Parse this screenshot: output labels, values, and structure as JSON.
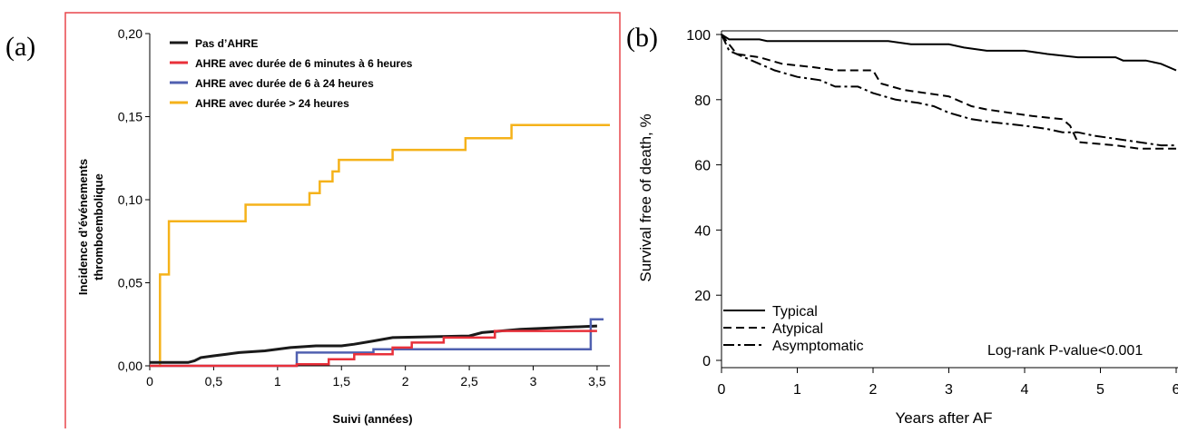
{
  "panel_a": {
    "letter": "(a)",
    "border_color": "#e8474c"
  },
  "panel_b": {
    "letter": "(b)"
  },
  "chart_data": [
    {
      "type": "line",
      "step": true,
      "xlabel": "Suivi (années)",
      "ylabel": [
        "Incidence d’événements",
        "thromboembolique"
      ],
      "xlim": [
        0,
        3.6
      ],
      "ylim": [
        0,
        0.2
      ],
      "xticks": [
        0,
        0.5,
        1,
        1.5,
        2,
        2.5,
        3,
        3.5
      ],
      "xtick_labels": [
        "0",
        "0,5",
        "1",
        "1,5",
        "2",
        "2,5",
        "3",
        "3,5"
      ],
      "yticks": [
        0,
        0.05,
        0.1,
        0.15,
        0.2
      ],
      "ytick_labels": [
        "0,00",
        "0,05",
        "0,10",
        "0,15",
        "0,20"
      ],
      "legend_position": "top-left",
      "series": [
        {
          "name": "Pas d’AHRE",
          "color": "#1a1a1a",
          "points": [
            [
              0,
              0.002
            ],
            [
              0.3,
              0.002
            ],
            [
              0.35,
              0.003
            ],
            [
              0.4,
              0.005
            ],
            [
              0.5,
              0.006
            ],
            [
              0.6,
              0.007
            ],
            [
              0.7,
              0.008
            ],
            [
              0.9,
              0.009
            ],
            [
              1.1,
              0.011
            ],
            [
              1.3,
              0.012
            ],
            [
              1.5,
              0.012
            ],
            [
              1.6,
              0.013
            ],
            [
              1.75,
              0.015
            ],
            [
              1.9,
              0.017
            ],
            [
              2.5,
              0.018
            ],
            [
              2.6,
              0.02
            ],
            [
              2.9,
              0.022
            ],
            [
              3.2,
              0.023
            ],
            [
              3.5,
              0.024
            ]
          ]
        },
        {
          "name": "AHRE avec durée de 6 minutes à 6 heures",
          "color": "#e8303a",
          "points": [
            [
              0,
              0
            ],
            [
              1.15,
              0
            ],
            [
              1.15,
              0.001
            ],
            [
              1.4,
              0.001
            ],
            [
              1.4,
              0.004
            ],
            [
              1.6,
              0.004
            ],
            [
              1.6,
              0.007
            ],
            [
              1.9,
              0.007
            ],
            [
              1.9,
              0.011
            ],
            [
              2.05,
              0.011
            ],
            [
              2.05,
              0.014
            ],
            [
              2.3,
              0.014
            ],
            [
              2.3,
              0.017
            ],
            [
              2.7,
              0.017
            ],
            [
              2.7,
              0.021
            ],
            [
              3.5,
              0.021
            ]
          ]
        },
        {
          "name": "AHRE avec durée de 6 à 24 heures",
          "color": "#5060b0",
          "points": [
            [
              0,
              0
            ],
            [
              1.15,
              0
            ],
            [
              1.15,
              0.008
            ],
            [
              1.75,
              0.008
            ],
            [
              1.75,
              0.01
            ],
            [
              3.45,
              0.01
            ],
            [
              3.45,
              0.028
            ],
            [
              3.55,
              0.028
            ]
          ]
        },
        {
          "name": "AHRE avec durée > 24 heures",
          "color": "#f5b21a",
          "points": [
            [
              0,
              0
            ],
            [
              0.08,
              0
            ],
            [
              0.08,
              0.055
            ],
            [
              0.15,
              0.055
            ],
            [
              0.15,
              0.087
            ],
            [
              0.75,
              0.087
            ],
            [
              0.75,
              0.097
            ],
            [
              1.25,
              0.097
            ],
            [
              1.25,
              0.104
            ],
            [
              1.33,
              0.104
            ],
            [
              1.33,
              0.111
            ],
            [
              1.43,
              0.111
            ],
            [
              1.43,
              0.117
            ],
            [
              1.48,
              0.117
            ],
            [
              1.48,
              0.124
            ],
            [
              1.9,
              0.124
            ],
            [
              1.9,
              0.13
            ],
            [
              2.47,
              0.13
            ],
            [
              2.47,
              0.137
            ],
            [
              2.83,
              0.137
            ],
            [
              2.83,
              0.145
            ],
            [
              3.6,
              0.145
            ]
          ]
        }
      ]
    },
    {
      "type": "line",
      "step": true,
      "xlabel": "Years after AF",
      "ylabel": "Survival free of death, %",
      "xlim": [
        0,
        6
      ],
      "ylim": [
        0,
        100
      ],
      "xticks": [
        0,
        1,
        2,
        3,
        4,
        5,
        6
      ],
      "xtick_labels": [
        "0",
        "1",
        "2",
        "3",
        "4",
        "5",
        "6"
      ],
      "yticks": [
        0,
        20,
        40,
        60,
        80,
        100
      ],
      "ytick_labels": [
        "0",
        "20",
        "40",
        "60",
        "80",
        "100"
      ],
      "legend_position": "bottom-left",
      "annotation": "Log-rank P-value<0.001",
      "series": [
        {
          "name": "Typical",
          "dash": "solid",
          "points": [
            [
              0,
              100
            ],
            [
              0.1,
              98.5
            ],
            [
              0.5,
              98.5
            ],
            [
              0.6,
              98
            ],
            [
              2.2,
              98
            ],
            [
              2.5,
              97
            ],
            [
              3.0,
              97
            ],
            [
              3.2,
              96
            ],
            [
              3.5,
              95
            ],
            [
              4.0,
              95
            ],
            [
              4.3,
              94
            ],
            [
              4.7,
              93
            ],
            [
              5.2,
              93
            ],
            [
              5.3,
              92
            ],
            [
              5.6,
              92
            ],
            [
              5.8,
              91
            ],
            [
              6.0,
              89
            ]
          ]
        },
        {
          "name": "Atypical",
          "dash": "dashed",
          "points": [
            [
              0,
              100
            ],
            [
              0.2,
              94
            ],
            [
              0.5,
              93
            ],
            [
              0.8,
              91
            ],
            [
              1.2,
              90
            ],
            [
              1.5,
              89
            ],
            [
              2.0,
              89
            ],
            [
              2.1,
              85
            ],
            [
              2.4,
              83
            ],
            [
              2.7,
              82
            ],
            [
              3.0,
              81
            ],
            [
              3.3,
              78
            ],
            [
              3.5,
              77
            ],
            [
              3.8,
              76
            ],
            [
              4.1,
              75
            ],
            [
              4.5,
              74
            ],
            [
              4.6,
              72
            ],
            [
              4.7,
              67
            ],
            [
              5.2,
              66
            ],
            [
              5.5,
              65
            ],
            [
              6.0,
              65
            ]
          ]
        },
        {
          "name": "Asymptomatic",
          "dash": "dashdot",
          "points": [
            [
              0,
              100
            ],
            [
              0.1,
              95
            ],
            [
              0.3,
              93
            ],
            [
              0.5,
              91
            ],
            [
              0.7,
              89
            ],
            [
              1.0,
              87
            ],
            [
              1.3,
              86
            ],
            [
              1.5,
              84
            ],
            [
              1.8,
              84
            ],
            [
              2.0,
              82
            ],
            [
              2.3,
              80
            ],
            [
              2.6,
              79
            ],
            [
              2.8,
              78
            ],
            [
              3.0,
              76
            ],
            [
              3.3,
              74
            ],
            [
              3.6,
              73
            ],
            [
              4.0,
              72
            ],
            [
              4.3,
              71
            ],
            [
              4.5,
              70
            ],
            [
              4.7,
              70
            ],
            [
              4.9,
              69
            ],
            [
              5.2,
              68
            ],
            [
              5.5,
              67
            ],
            [
              5.8,
              66
            ],
            [
              6.0,
              66
            ]
          ]
        }
      ]
    }
  ]
}
